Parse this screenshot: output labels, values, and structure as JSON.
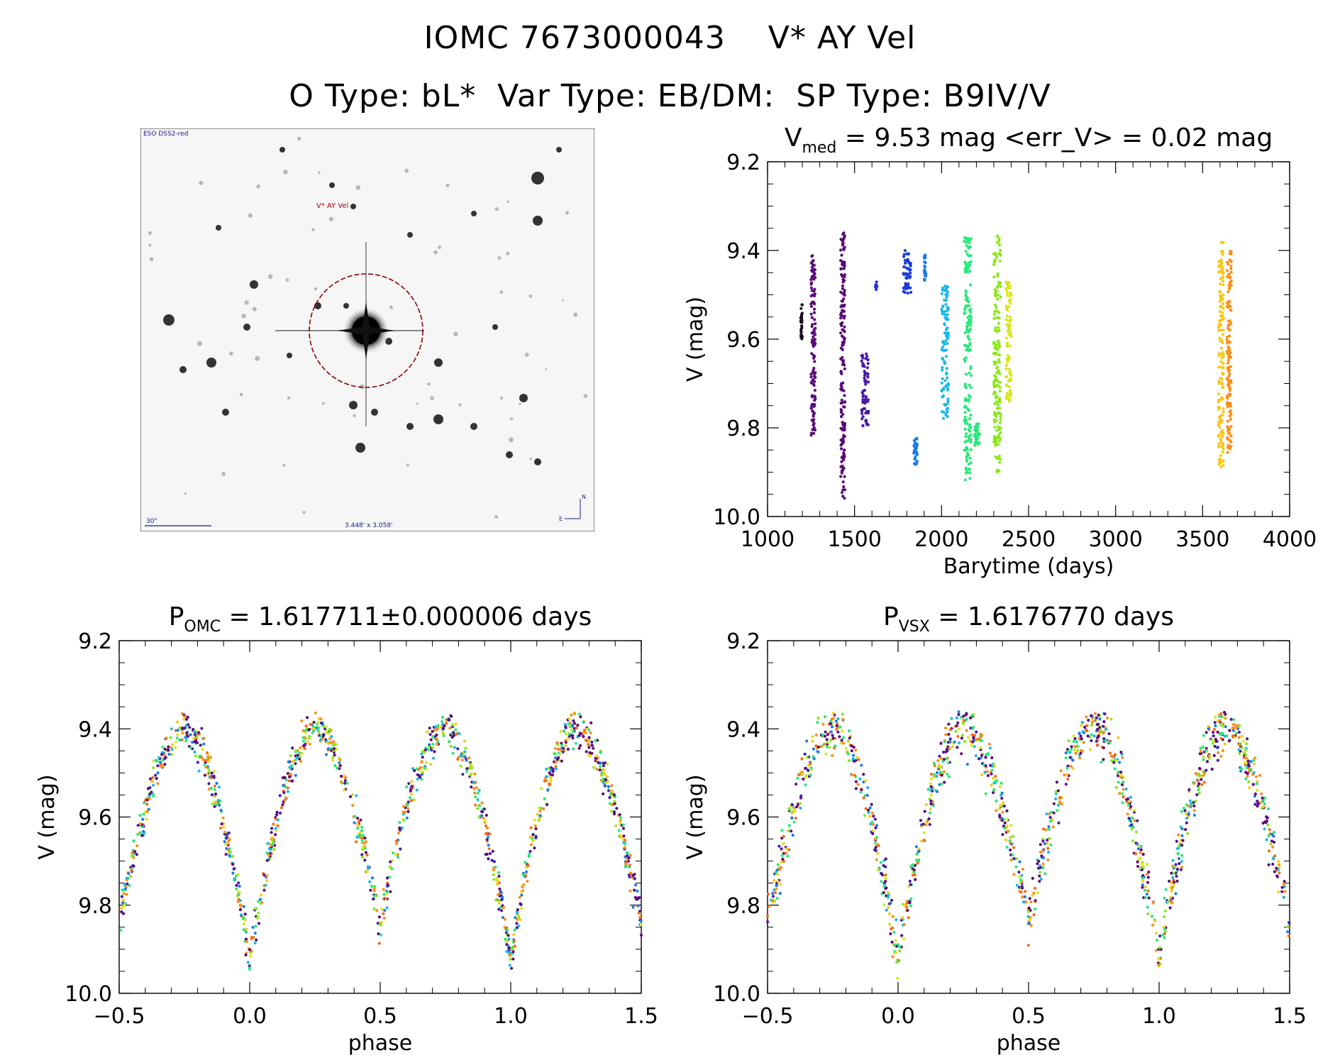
{
  "header": {
    "line1": "IOMC 7673000043    V* AY Vel",
    "line2": "O Type: bL*  Var Type: EB/DM:  SP Type: B9IV/V"
  },
  "finding_chart": {
    "survey_label": "ESO DSS2-red",
    "target_label": "V* AY Vel",
    "scale_label": "30\"",
    "fov_label": "3.448' x 3.058'",
    "north_label": "N",
    "east_label": "E"
  },
  "colors": {
    "palette": [
      "#1a0a1a",
      "#5a0a7a",
      "#4a1aa8",
      "#1a3ad8",
      "#1a7ae8",
      "#1ab8e8",
      "#1ae8c8",
      "#2ae87a",
      "#8ae81a",
      "#d8e81a",
      "#f8c81a",
      "#f8901a",
      "#f86a1a"
    ]
  },
  "chart_data": [
    {
      "id": "lightcurve",
      "type": "scatter",
      "title_main": "V",
      "title_sub": "med",
      "title_rest": " = 9.53 mag <err_V> = 0.02 mag",
      "xlabel": "Barytime (days)",
      "ylabel": "V (mag)",
      "xlim": [
        1000,
        4000
      ],
      "ylim": [
        10.0,
        9.2
      ],
      "xticks": [
        "1000",
        "1500",
        "2000",
        "2500",
        "3000",
        "3500",
        "4000"
      ],
      "yticks": [
        "9.2",
        "9.4",
        "9.6",
        "9.8",
        "10.0"
      ],
      "segments": [
        {
          "x": [
            1190,
            1200
          ],
          "y": [
            9.52,
            9.6
          ],
          "color": 0
        },
        {
          "x": [
            1250,
            1275
          ],
          "y": [
            9.41,
            9.82
          ],
          "color": 1
        },
        {
          "x": [
            1420,
            1445
          ],
          "y": [
            9.36,
            9.96
          ],
          "color": 1
        },
        {
          "x": [
            1540,
            1580
          ],
          "y": [
            9.63,
            9.8
          ],
          "color": 2
        },
        {
          "x": [
            1620,
            1630
          ],
          "y": [
            9.47,
            9.49
          ],
          "color": 3
        },
        {
          "x": [
            1780,
            1825
          ],
          "y": [
            9.4,
            9.5
          ],
          "color": 3
        },
        {
          "x": [
            1840,
            1860
          ],
          "y": [
            9.82,
            9.89
          ],
          "color": 4
        },
        {
          "x": [
            1900,
            1910
          ],
          "y": [
            9.41,
            9.47
          ],
          "color": 4
        },
        {
          "x": [
            2000,
            2040
          ],
          "y": [
            9.48,
            9.78
          ],
          "color": 5
        },
        {
          "x": [
            2130,
            2170
          ],
          "y": [
            9.37,
            9.92
          ],
          "color": 7
        },
        {
          "x": [
            2190,
            2220
          ],
          "y": [
            9.79,
            9.84
          ],
          "color": 7
        },
        {
          "x": [
            2300,
            2340
          ],
          "y": [
            9.36,
            9.9
          ],
          "color": 8
        },
        {
          "x": [
            2370,
            2400
          ],
          "y": [
            9.47,
            9.74
          ],
          "color": 9
        },
        {
          "x": [
            3590,
            3620
          ],
          "y": [
            9.38,
            9.89
          ],
          "color": 10
        },
        {
          "x": [
            3640,
            3665
          ],
          "y": [
            9.4,
            9.86
          ],
          "color": 11
        }
      ]
    },
    {
      "id": "phase_omc",
      "type": "scatter",
      "title_main": "P",
      "title_sub": "OMC",
      "title_rest": " = 1.617711±0.000006 days",
      "xlabel": "phase",
      "ylabel": "V (mag)",
      "xlim": [
        -0.5,
        1.5
      ],
      "ylim": [
        10.0,
        9.2
      ],
      "xticks": [
        "−0.5",
        "0.0",
        "0.5",
        "1.0",
        "1.5"
      ],
      "yticks": [
        "9.2",
        "9.4",
        "9.6",
        "9.8",
        "10.0"
      ],
      "curve": {
        "max_mag": 9.4,
        "primary_min_mag": 9.92,
        "secondary_min_mag": 9.84,
        "scatter_mag": 0.04
      }
    },
    {
      "id": "phase_vsx",
      "type": "scatter",
      "title_main": "P",
      "title_sub": "VSX",
      "title_rest": " = 1.6176770 days",
      "xlabel": "phase",
      "ylabel": "V (mag)",
      "xlim": [
        -0.5,
        1.5
      ],
      "ylim": [
        10.0,
        9.2
      ],
      "xticks": [
        "−0.5",
        "0.0",
        "0.5",
        "1.0",
        "1.5"
      ],
      "yticks": [
        "9.2",
        "9.4",
        "9.6",
        "9.8",
        "10.0"
      ],
      "curve": {
        "max_mag": 9.4,
        "primary_min_mag": 9.92,
        "secondary_min_mag": 9.84,
        "scatter_mag": 0.055
      }
    }
  ]
}
